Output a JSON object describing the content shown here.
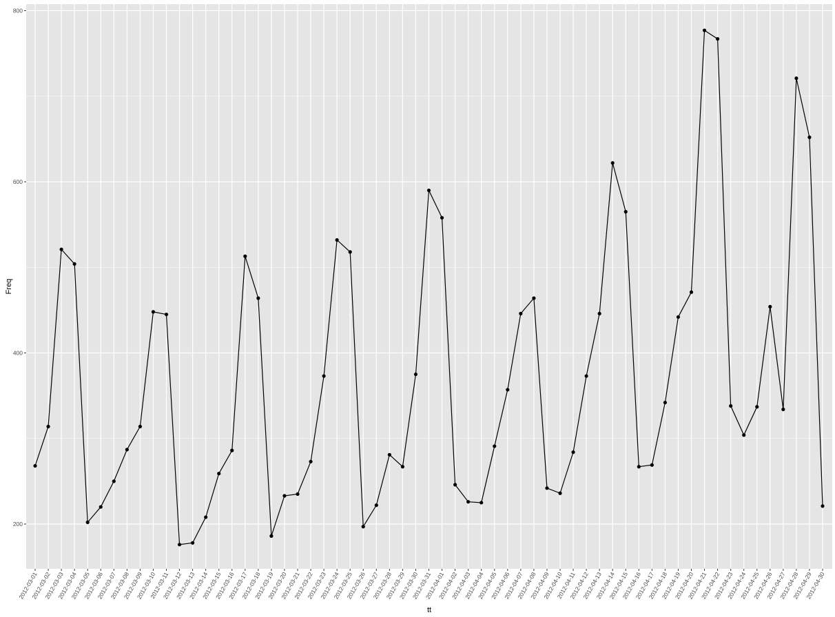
{
  "chart_data": {
    "type": "line",
    "xlabel": "tt",
    "ylabel": "Freq",
    "ylim": [
      150,
      810
    ],
    "y_ticks": [
      200,
      400,
      600,
      800
    ],
    "grid": true,
    "panel_background": "#e5e5e5",
    "grid_color": "#ffffff",
    "line_color": "#000000",
    "point_color": "#000000",
    "x": [
      "2012-03-01",
      "2012-03-02",
      "2012-03-03",
      "2012-03-04",
      "2012-03-05",
      "2012-03-06",
      "2012-03-07",
      "2012-03-08",
      "2012-03-09",
      "2012-03-10",
      "2012-03-11",
      "2012-03-12",
      "2012-03-13",
      "2012-03-14",
      "2012-03-15",
      "2012-03-16",
      "2012-03-17",
      "2012-03-18",
      "2012-03-19",
      "2012-03-20",
      "2012-03-21",
      "2012-03-22",
      "2012-03-23",
      "2012-03-24",
      "2012-03-25",
      "2012-03-26",
      "2012-03-27",
      "2012-03-28",
      "2012-03-29",
      "2012-03-30",
      "2012-03-31",
      "2012-04-01",
      "2012-04-02",
      "2012-04-03",
      "2012-04-04",
      "2012-04-05",
      "2012-04-06",
      "2012-04-07",
      "2012-04-08",
      "2012-04-09",
      "2012-04-10",
      "2012-04-11",
      "2012-04-12",
      "2012-04-13",
      "2012-04-14",
      "2012-04-15",
      "2012-04-16",
      "2012-04-17",
      "2012-04-18",
      "2012-04-19",
      "2012-04-20",
      "2012-04-21",
      "2012-04-22",
      "2012-04-23",
      "2012-04-24",
      "2012-04-25",
      "2012-04-26",
      "2012-04-27",
      "2012-04-28",
      "2012-04-29",
      "2012-04-30"
    ],
    "series": [
      {
        "values": [
          268,
          314,
          521,
          504,
          202,
          220,
          250,
          287,
          314,
          448,
          445,
          176,
          178,
          208,
          259,
          286,
          513,
          464,
          186,
          233,
          235,
          273,
          373,
          532,
          518,
          197,
          222,
          281,
          267,
          375,
          590,
          558,
          246,
          226,
          225,
          291,
          357,
          446,
          464,
          242,
          236,
          284,
          373,
          446,
          622,
          565,
          267,
          269,
          342,
          442,
          471,
          777,
          767,
          338,
          304,
          337,
          454,
          334,
          721,
          652,
          221
        ]
      }
    ]
  }
}
